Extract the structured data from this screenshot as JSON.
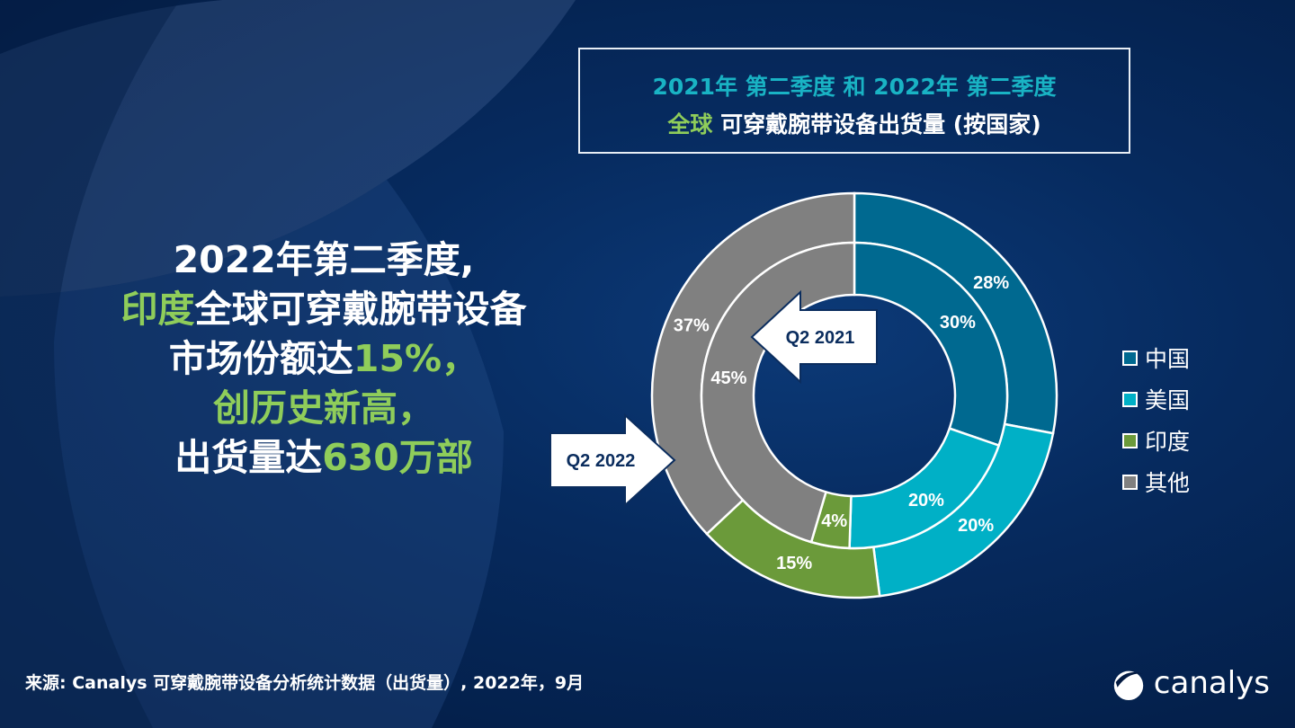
{
  "title": {
    "line1": "2021年 第二季度 和 2022年 第二季度",
    "line2_highlight": "全球",
    "line2_rest": " 可穿戴腕带设备出货量 (按国家)"
  },
  "headline": {
    "l1": "2022年第二季度,",
    "l2a": "印度",
    "l2b": "全球可穿戴腕带设备",
    "l3a": "市场份额达",
    "l3b": "15%，",
    "l4": "创历史新高，",
    "l5a": "出货量达",
    "l5b": "630万部"
  },
  "source": "来源: Canalys 可穿戴腕带设备分析统计数据（出货量）, 2022年，9月",
  "logo": "canalys",
  "chart_data": {
    "type": "pie",
    "title": "2021年 第二季度 和 2022年 第二季度 全球 可穿戴腕带设备出货量 (按国家)",
    "categories": [
      "中国",
      "美国",
      "印度",
      "其他"
    ],
    "colors": [
      "#006990",
      "#00b0c6",
      "#6b9a3a",
      "#808080"
    ],
    "series": [
      {
        "name": "Q2 2022",
        "ring": "outer",
        "values": [
          28,
          20,
          15,
          37
        ],
        "labels": [
          "28%",
          "20%",
          "15%",
          "37%"
        ]
      },
      {
        "name": "Q2 2021",
        "ring": "inner",
        "values": [
          30,
          20,
          4,
          45
        ],
        "labels": [
          "30%",
          "20%",
          "4%",
          "45%"
        ]
      }
    ],
    "legend": "right"
  }
}
